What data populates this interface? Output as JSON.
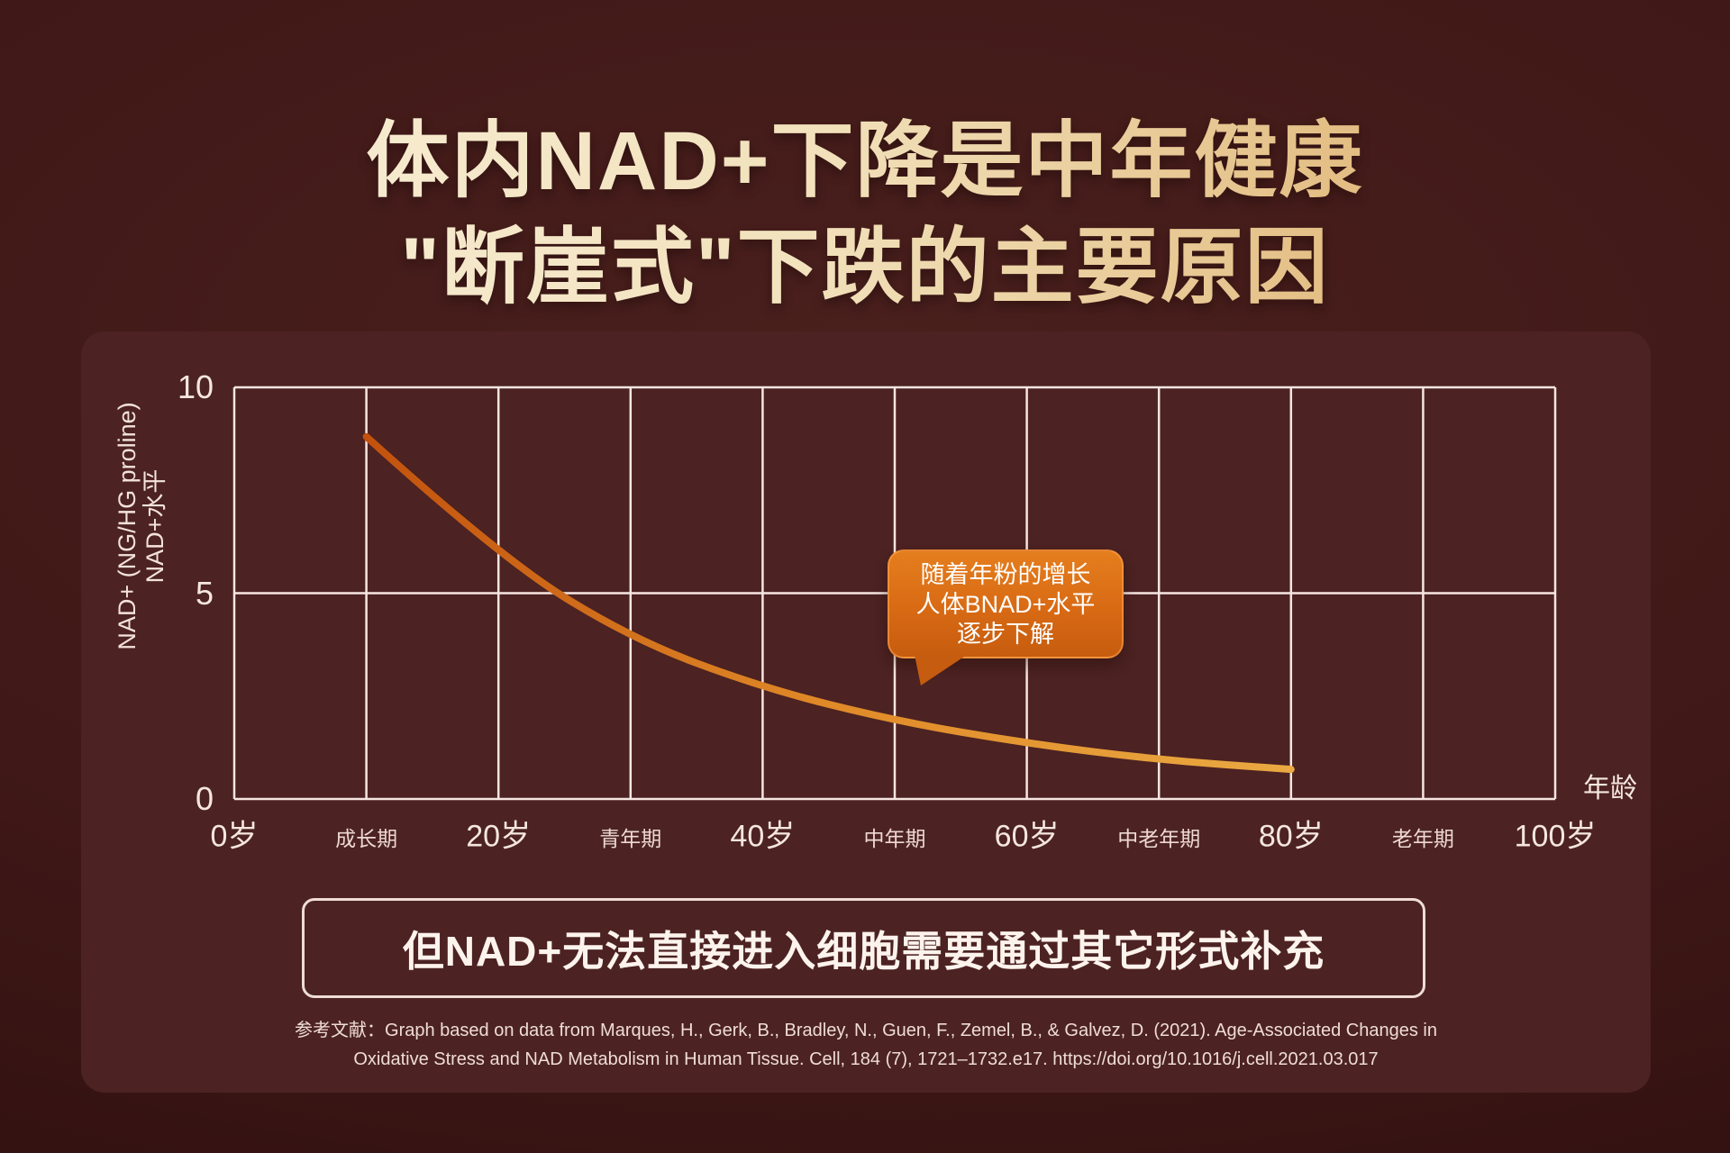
{
  "title": {
    "line1": "体内NAD+下降是中年健康",
    "line2": "\"断崖式\"下跌的主要原因"
  },
  "chart_data": {
    "type": "line",
    "x": [
      10,
      20,
      30,
      40,
      50,
      60,
      70,
      80
    ],
    "y": [
      8.8,
      5.9,
      3.9,
      2.7,
      1.9,
      1.35,
      0.95,
      0.72
    ],
    "series_name": "NAD+水平",
    "xlabel": "年龄",
    "ylabel_line1": "NAD+ (NG/HG proline)",
    "ylabel_line2": "NAD+水平",
    "xlim": [
      0,
      100
    ],
    "ylim": [
      0,
      10
    ],
    "grid": true,
    "legend": "none",
    "x_ticks_major": [
      {
        "v": 0,
        "label": "0岁"
      },
      {
        "v": 20,
        "label": "20岁"
      },
      {
        "v": 40,
        "label": "40岁"
      },
      {
        "v": 60,
        "label": "60岁"
      },
      {
        "v": 80,
        "label": "80岁"
      },
      {
        "v": 100,
        "label": "100岁"
      }
    ],
    "x_ticks_minor": [
      {
        "v": 10,
        "label": "成长期"
      },
      {
        "v": 30,
        "label": "青年期"
      },
      {
        "v": 50,
        "label": "中年期"
      },
      {
        "v": 70,
        "label": "中老年期"
      },
      {
        "v": 90,
        "label": "老年期"
      }
    ],
    "y_ticks": [
      {
        "v": 10,
        "label": "10"
      },
      {
        "v": 5,
        "label": "5"
      },
      {
        "v": 0,
        "label": "0"
      }
    ]
  },
  "callout": {
    "line1": "随着年粉的增长",
    "line2": "人体BNAD+水平",
    "line3": "逐步下解"
  },
  "banner": {
    "text": "但NAD+无法直接进入细胞需要通过其它形式补充"
  },
  "reference": {
    "line1": "参考文献：Graph based on data from Marques, H., Gerk, B., Bradley, N., Guen, F., Zemel, B., & Galvez, D. (2021). Age-Associated Changes in",
    "line2": "Oxidative Stress and NAD Metabolism in Human Tissue. Cell, 184 (7), 1721–1732.e17. https://doi.org/10.1016/j.cell.2021.03.017"
  },
  "colors": {
    "page_background": "#3f1817",
    "card_background": "#4c2222",
    "grid_line": "#f6e6e1",
    "curve_start": "#c2520e",
    "curve_mid": "#e08a28",
    "curve_end": "#eaa942",
    "callout_top": "#e57e1e",
    "callout_bottom": "#c65c0f",
    "title_cream": "#f8eed6",
    "title_gold": "#d9a55c",
    "light_text": "#f5e6e0"
  }
}
